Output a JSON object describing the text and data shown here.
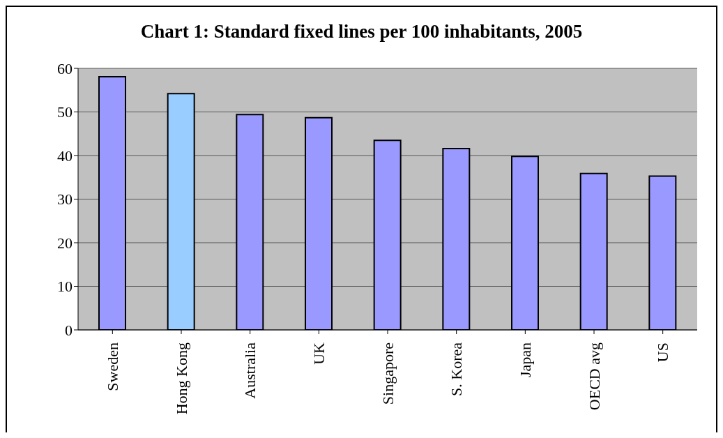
{
  "chart_data": {
    "type": "bar",
    "title": "Chart 1: Standard fixed lines per 100 inhabitants, 2005",
    "categories": [
      "Sweden",
      "Hong Kong",
      "Australia",
      "UK",
      "Singapore",
      "S. Korea",
      "Japan",
      "OECD avg",
      "US"
    ],
    "values": [
      58.1,
      54.2,
      49.4,
      48.7,
      43.5,
      41.6,
      39.8,
      35.9,
      35.3
    ],
    "colors": [
      "#9999ff",
      "#99ccff",
      "#9999ff",
      "#9999ff",
      "#9999ff",
      "#9999ff",
      "#9999ff",
      "#9999ff",
      "#9999ff"
    ],
    "ylim": [
      0,
      60
    ],
    "yticks": [
      0,
      10,
      20,
      30,
      40,
      50,
      60
    ],
    "grid": "y"
  }
}
